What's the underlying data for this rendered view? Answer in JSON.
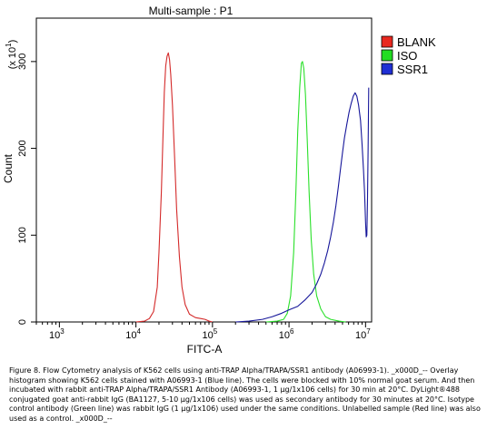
{
  "chart_data": {
    "type": "line",
    "title": "Multi-sample : P1",
    "xlabel": "FITC-A",
    "ylabel": "Count",
    "y_multiplier_label": "(x 10",
    "y_multiplier_exp": "1",
    "y_multiplier_close": ")",
    "x_scale": "log",
    "xlim": [
      500,
      12000000
    ],
    "ylim": [
      0,
      350
    ],
    "x_ticks": [
      {
        "value": 1000,
        "base": "10",
        "exp": "3"
      },
      {
        "value": 10000,
        "base": "10",
        "exp": "4"
      },
      {
        "value": 100000,
        "base": "10",
        "exp": "5"
      },
      {
        "value": 1000000,
        "base": "10",
        "exp": "6"
      },
      {
        "value": 10000000,
        "base": "10",
        "exp": "7"
      }
    ],
    "y_ticks": [
      {
        "value": 0,
        "label": "0"
      },
      {
        "value": 100,
        "label": "100"
      },
      {
        "value": 200,
        "label": "200"
      },
      {
        "value": 300,
        "label": "300"
      }
    ],
    "grid": false,
    "legend_position": "right",
    "series": [
      {
        "name": "BLANK",
        "color": "#d42a2a",
        "legend_color": "#e8281f",
        "points": [
          [
            10000,
            0
          ],
          [
            13000,
            1
          ],
          [
            15000,
            4
          ],
          [
            17000,
            12
          ],
          [
            19000,
            40
          ],
          [
            20000,
            80
          ],
          [
            21500,
            150
          ],
          [
            22500,
            210
          ],
          [
            23500,
            265
          ],
          [
            24500,
            295
          ],
          [
            25500,
            306
          ],
          [
            26500,
            310
          ],
          [
            27500,
            302
          ],
          [
            28500,
            285
          ],
          [
            30000,
            250
          ],
          [
            32000,
            190
          ],
          [
            34000,
            130
          ],
          [
            37000,
            75
          ],
          [
            40000,
            40
          ],
          [
            44000,
            20
          ],
          [
            50000,
            9
          ],
          [
            60000,
            5
          ],
          [
            70000,
            4
          ],
          [
            80000,
            3
          ],
          [
            90000,
            1
          ],
          [
            100000,
            0
          ]
        ]
      },
      {
        "name": "ISO",
        "color": "#2ae02a",
        "legend_color": "#22dd22",
        "points": [
          [
            500000,
            0
          ],
          [
            700000,
            1
          ],
          [
            850000,
            3
          ],
          [
            950000,
            10
          ],
          [
            1050000,
            30
          ],
          [
            1150000,
            80
          ],
          [
            1230000,
            150
          ],
          [
            1300000,
            220
          ],
          [
            1380000,
            270
          ],
          [
            1450000,
            298
          ],
          [
            1500000,
            300
          ],
          [
            1560000,
            292
          ],
          [
            1640000,
            262
          ],
          [
            1730000,
            210
          ],
          [
            1830000,
            150
          ],
          [
            1950000,
            95
          ],
          [
            2100000,
            55
          ],
          [
            2300000,
            30
          ],
          [
            2600000,
            15
          ],
          [
            3000000,
            6
          ],
          [
            3500000,
            3
          ],
          [
            4500000,
            1
          ],
          [
            5500000,
            0
          ]
        ]
      },
      {
        "name": "SSR1",
        "color": "#16169a",
        "legend_color": "#1f2fd4",
        "points": [
          [
            200000,
            0
          ],
          [
            300000,
            1
          ],
          [
            450000,
            3
          ],
          [
            600000,
            6
          ],
          [
            800000,
            10
          ],
          [
            1000000,
            14
          ],
          [
            1300000,
            18
          ],
          [
            1600000,
            25
          ],
          [
            2000000,
            34
          ],
          [
            2300000,
            44
          ],
          [
            2600000,
            55
          ],
          [
            2900000,
            68
          ],
          [
            3200000,
            82
          ],
          [
            3500000,
            98
          ],
          [
            3800000,
            115
          ],
          [
            4100000,
            134
          ],
          [
            4400000,
            155
          ],
          [
            4700000,
            176
          ],
          [
            5000000,
            195
          ],
          [
            5300000,
            212
          ],
          [
            5700000,
            228
          ],
          [
            6100000,
            242
          ],
          [
            6500000,
            252
          ],
          [
            6900000,
            260
          ],
          [
            7300000,
            264
          ],
          [
            7700000,
            260
          ],
          [
            8100000,
            250
          ],
          [
            8600000,
            232
          ],
          [
            9000000,
            205
          ],
          [
            9400000,
            175
          ],
          [
            9700000,
            150
          ],
          [
            10000000,
            115
          ],
          [
            10200000,
            98
          ],
          [
            10400000,
            100
          ],
          [
            10600000,
            140
          ],
          [
            10800000,
            200
          ],
          [
            11000000,
            270
          ]
        ]
      }
    ]
  },
  "caption": "Figure 8. Flow Cytometry analysis of K562 cells using anti-TRAP Alpha/TRAPA/SSR1 antibody (A06993-1). _x000D_-- Overlay histogram showing K562 cells stained with A06993-1 (Blue line). The cells were blocked with 10% normal goat serum. And then incubated with rabbit anti-TRAP Alpha/TRAPA/SSR1 Antibody (A06993-1, 1 µg/1x106 cells) for 30 min at 20°C. DyLight®488 conjugated goat anti-rabbit IgG (BA1127, 5-10 µg/1x106 cells) was used as secondary antibody for 30 minutes at 20°C. Isotype control antibody (Green line) was rabbit IgG (1 µg/1x106) used under the same conditions. Unlabelled sample (Red line) was also used as a control. _x000D_--"
}
